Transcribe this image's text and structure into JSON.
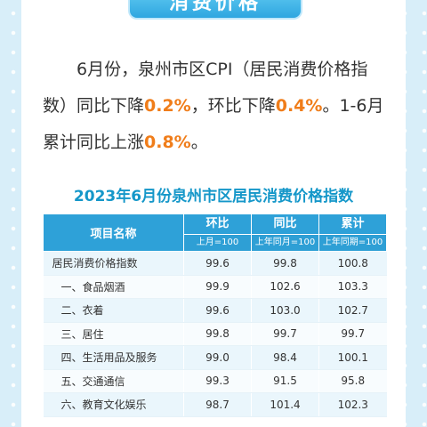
{
  "banner": {
    "title": "消费价格"
  },
  "paragraph": {
    "part1": "6月份，泉州市区CPI（居民消费价格指数）同比下降",
    "hl1": "0.2%",
    "part2": "，环比下降",
    "hl2": "0.4%",
    "part3": "。1-6月累计同比上涨",
    "hl3": "0.8%",
    "part4": "。"
  },
  "table": {
    "title": "2023年6月份泉州市区居民消费价格指数",
    "headers": {
      "item": "项目名称",
      "mom": "环比",
      "mom_sub": "上月=100",
      "yoy": "同比",
      "yoy_sub": "上年同月=100",
      "cum": "累计",
      "cum_sub": "上年同期=100"
    },
    "rows": [
      {
        "item": "居民消费价格指数",
        "mom": "99.6",
        "yoy": "99.8",
        "cum": "100.8"
      },
      {
        "item": "一、食品烟酒",
        "mom": "99.9",
        "yoy": "102.6",
        "cum": "103.3"
      },
      {
        "item": "二、衣着",
        "mom": "99.6",
        "yoy": "103.0",
        "cum": "102.7"
      },
      {
        "item": "三、居住",
        "mom": "99.8",
        "yoy": "99.7",
        "cum": "99.7"
      },
      {
        "item": "四、生活用品及服务",
        "mom": "99.0",
        "yoy": "98.4",
        "cum": "100.1"
      },
      {
        "item": "五、交通通信",
        "mom": "99.3",
        "yoy": "91.5",
        "cum": "95.8"
      },
      {
        "item": "六、教育文化娱乐",
        "mom": "98.7",
        "yoy": "101.4",
        "cum": "102.3"
      }
    ]
  },
  "colors": {
    "accent": "#2ea1d8",
    "highlight": "#f07d1a",
    "title": "#1597c9"
  }
}
